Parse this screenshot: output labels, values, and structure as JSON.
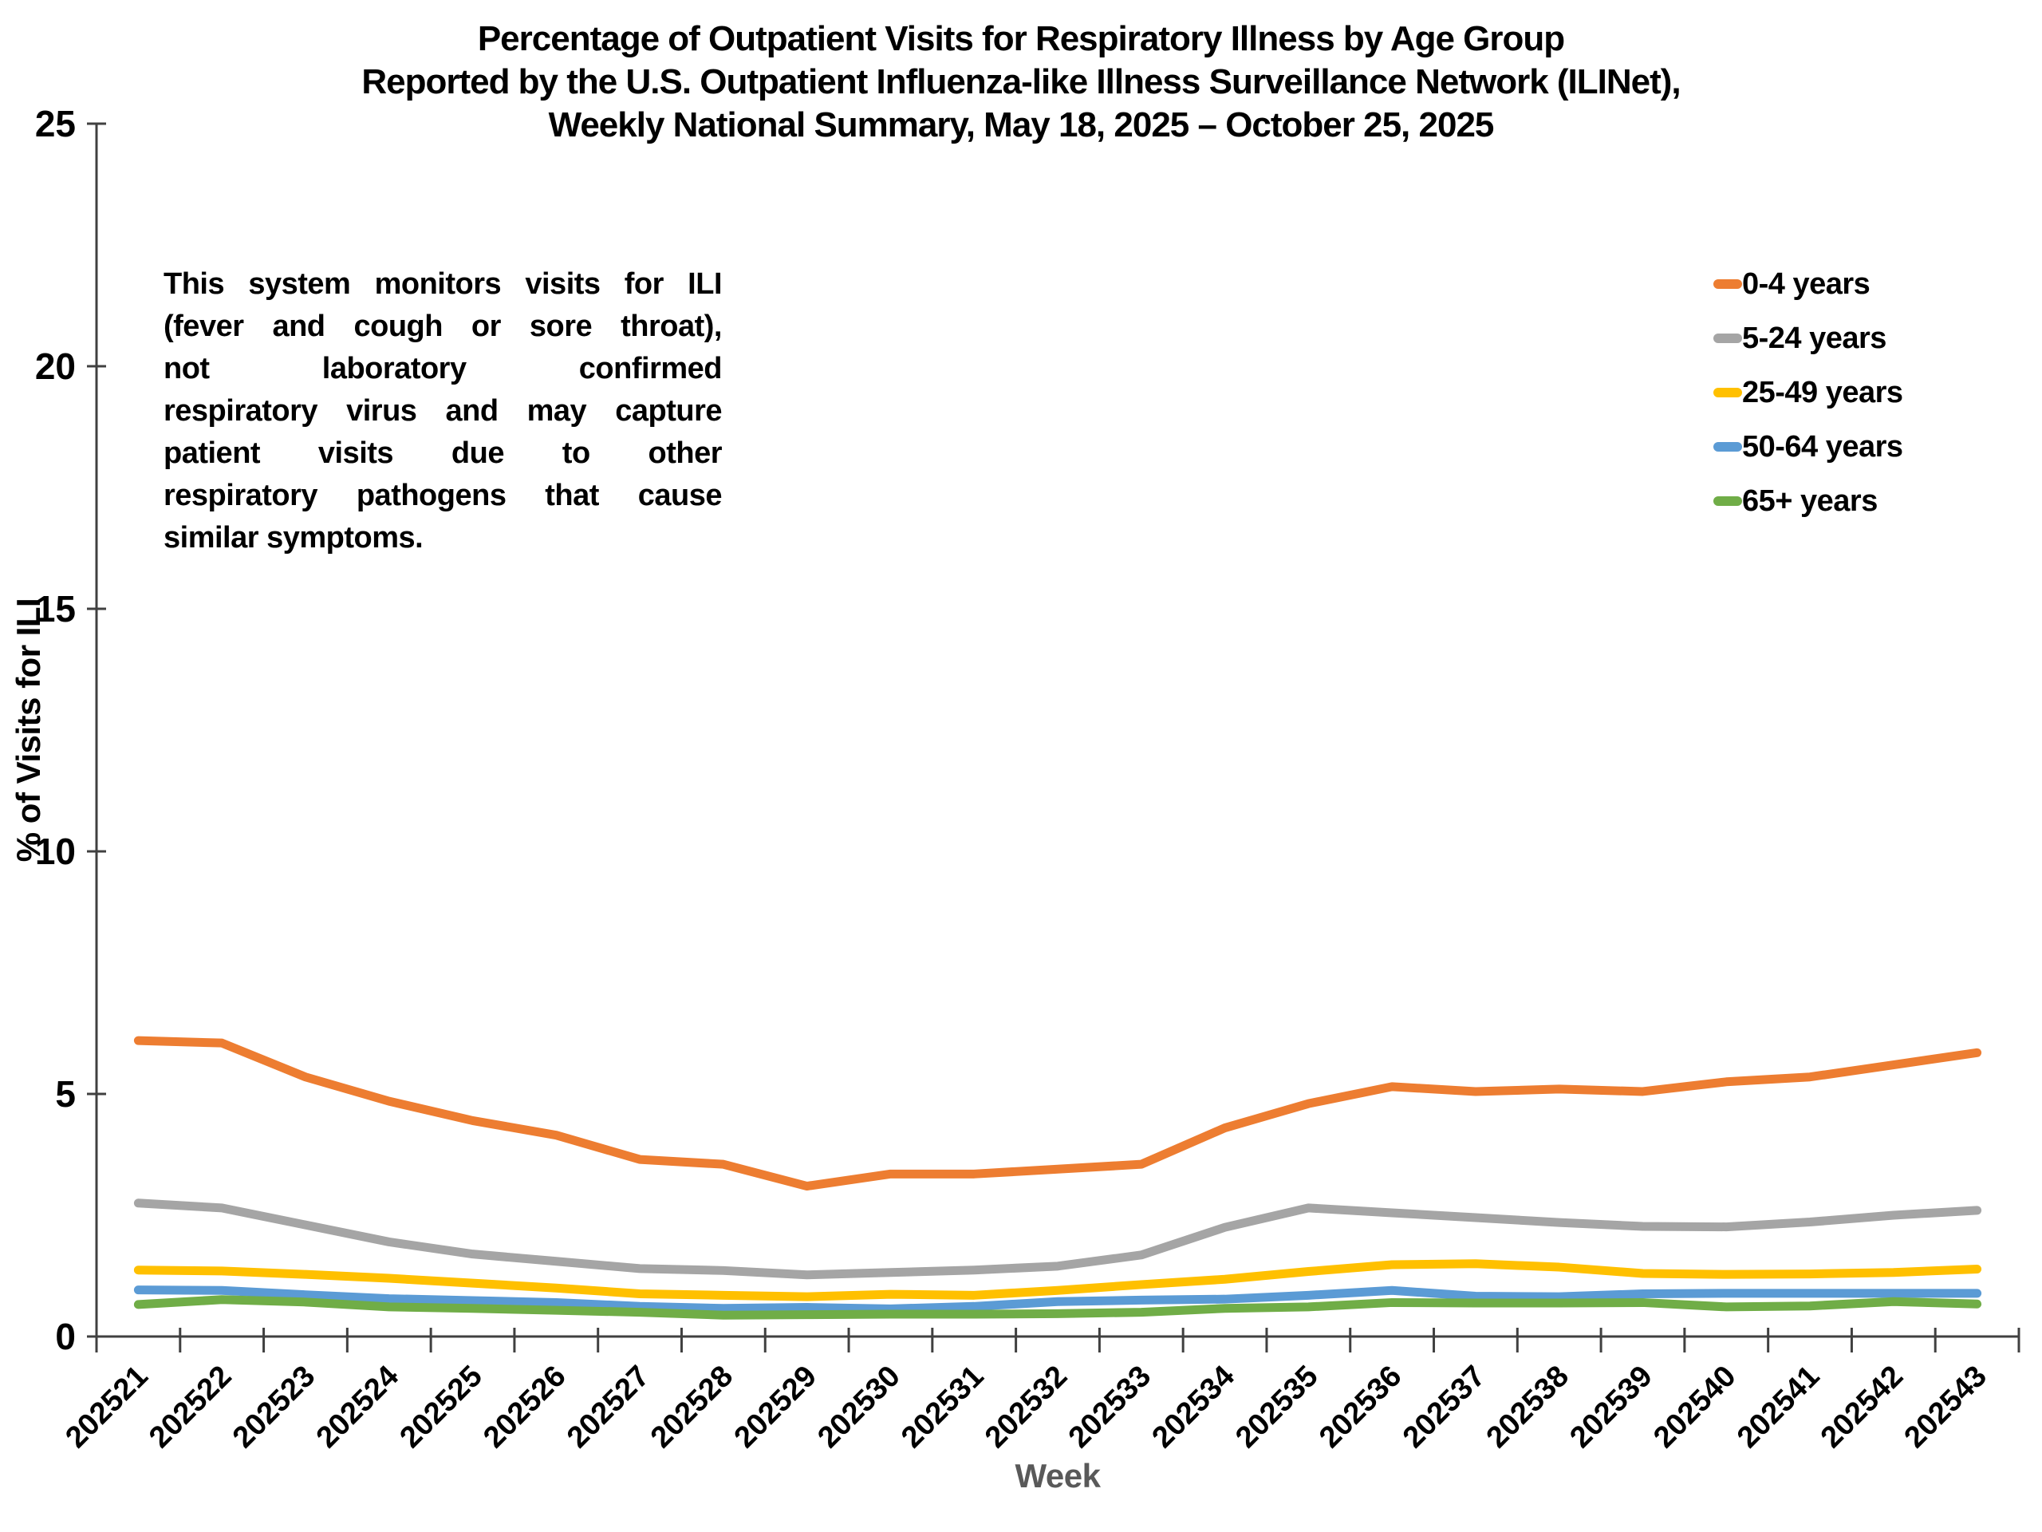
{
  "title": {
    "line1": "Percentage of Outpatient Visits for Respiratory Illness by Age Group",
    "line2": "Reported by the U.S. Outpatient Influenza-like Illness Surveillance Network (ILINet),",
    "line3": "Weekly National Summary, May 18, 2025 – October 25, 2025"
  },
  "annotation": {
    "lines": [
      "This system monitors visits for ILI",
      "(fever and cough or sore throat),",
      "not laboratory confirmed",
      "respiratory virus and may capture",
      "patient visits due to other",
      "respiratory pathogens that cause",
      "similar symptoms."
    ]
  },
  "chart_data": {
    "type": "line",
    "x": [
      "202521",
      "202522",
      "202523",
      "202524",
      "202525",
      "202526",
      "202527",
      "202528",
      "202529",
      "202530",
      "202531",
      "202532",
      "202533",
      "202534",
      "202535",
      "202536",
      "202537",
      "202538",
      "202539",
      "202540",
      "202541",
      "202542",
      "202543"
    ],
    "series": [
      {
        "name": "0-4 years",
        "color": "#ED7D31",
        "values": [
          6.1,
          6.05,
          5.35,
          4.85,
          4.45,
          4.15,
          3.65,
          3.55,
          3.1,
          3.35,
          3.35,
          3.45,
          3.55,
          4.3,
          4.8,
          5.15,
          5.05,
          5.1,
          5.05,
          5.25,
          5.35,
          5.6,
          5.85
        ]
      },
      {
        "name": "5-24 years",
        "color": "#A5A5A5",
        "values": [
          2.75,
          2.65,
          2.3,
          1.95,
          1.7,
          1.55,
          1.4,
          1.36,
          1.27,
          1.32,
          1.37,
          1.45,
          1.68,
          2.25,
          2.65,
          2.55,
          2.45,
          2.35,
          2.27,
          2.26,
          2.36,
          2.5,
          2.6
        ]
      },
      {
        "name": "25-49 years",
        "color": "#FFC000",
        "values": [
          1.37,
          1.35,
          1.28,
          1.2,
          1.1,
          1.0,
          0.88,
          0.85,
          0.82,
          0.87,
          0.85,
          0.95,
          1.07,
          1.18,
          1.34,
          1.48,
          1.5,
          1.43,
          1.3,
          1.28,
          1.29,
          1.32,
          1.39
        ]
      },
      {
        "name": "50-64 years",
        "color": "#5B9BD5",
        "values": [
          0.96,
          0.95,
          0.86,
          0.78,
          0.74,
          0.7,
          0.62,
          0.58,
          0.6,
          0.57,
          0.62,
          0.72,
          0.75,
          0.77,
          0.85,
          0.95,
          0.83,
          0.82,
          0.88,
          0.89,
          0.89,
          0.89,
          0.89
        ]
      },
      {
        "name": "65+ years",
        "color": "#70AD47",
        "values": [
          0.66,
          0.76,
          0.71,
          0.61,
          0.58,
          0.54,
          0.5,
          0.44,
          0.45,
          0.46,
          0.46,
          0.47,
          0.5,
          0.58,
          0.61,
          0.7,
          0.69,
          0.69,
          0.7,
          0.61,
          0.63,
          0.72,
          0.67
        ]
      }
    ],
    "xlabel": "Week",
    "ylabel": "% of Visits for ILI",
    "ylim": [
      0,
      25
    ],
    "yticks": [
      0,
      5,
      10,
      15,
      20,
      25
    ],
    "grid": false,
    "legend_position": "top-right"
  },
  "colors": {
    "axis": "#404040",
    "tick_label": "#000000",
    "x_axis_title": "#595959"
  }
}
